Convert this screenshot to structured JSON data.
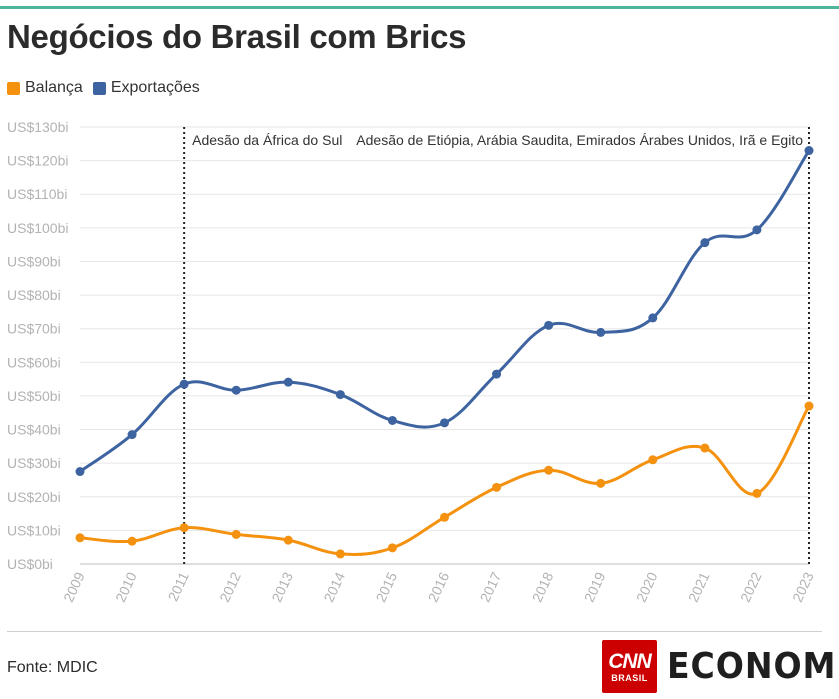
{
  "title": "Negócios do Brasil com Brics",
  "legend": [
    {
      "label": "Balança",
      "color": "#f4920f"
    },
    {
      "label": "Exportações",
      "color": "#3d63a0"
    }
  ],
  "source": "Fonte: MDIC",
  "logo": {
    "cnn": "CNN",
    "cnn_sub": "BRASIL",
    "economia": "ECONOMIA",
    "economia_accent_color": "#4fc2a8"
  },
  "chart_data": {
    "type": "line",
    "x": [
      "2009",
      "2010",
      "2011",
      "2012",
      "2013",
      "2014",
      "2015",
      "2016",
      "2017",
      "2018",
      "2019",
      "2020",
      "2021",
      "2022",
      "2023"
    ],
    "series": [
      {
        "name": "Exportações",
        "color": "#3d63a0",
        "values": [
          27.5,
          38.5,
          53.5,
          51.7,
          54.1,
          50.4,
          42.7,
          42.0,
          56.5,
          71.0,
          68.9,
          73.2,
          95.6,
          99.4,
          123.0
        ]
      },
      {
        "name": "Balança",
        "color": "#f4920f",
        "values": [
          7.8,
          6.8,
          10.8,
          8.8,
          7.1,
          3.0,
          4.8,
          13.9,
          22.8,
          27.9,
          24.0,
          31.0,
          34.5,
          21.0,
          47.0
        ]
      }
    ],
    "ylim": [
      0,
      130
    ],
    "yticks": [
      0,
      10,
      20,
      30,
      40,
      50,
      60,
      70,
      80,
      90,
      100,
      110,
      120,
      130
    ],
    "ytick_labels": [
      "US$0bi",
      "US$10bi",
      "US$20bi",
      "US$30bi",
      "US$40bi",
      "US$50bi",
      "US$60bi",
      "US$70bi",
      "US$80bi",
      "US$90bi",
      "US$100bi",
      "US$110bi",
      "US$120bi",
      "US$130bi"
    ],
    "annotations": [
      {
        "x": "2011",
        "text": "Adesão da África do Sul"
      },
      {
        "x": "2023",
        "text": "Adesão de Etiópia, Arábia Saudita, Emirados Árabes Unidos, Irã e Egito"
      }
    ],
    "grid": true,
    "legend_position": "top-left"
  }
}
